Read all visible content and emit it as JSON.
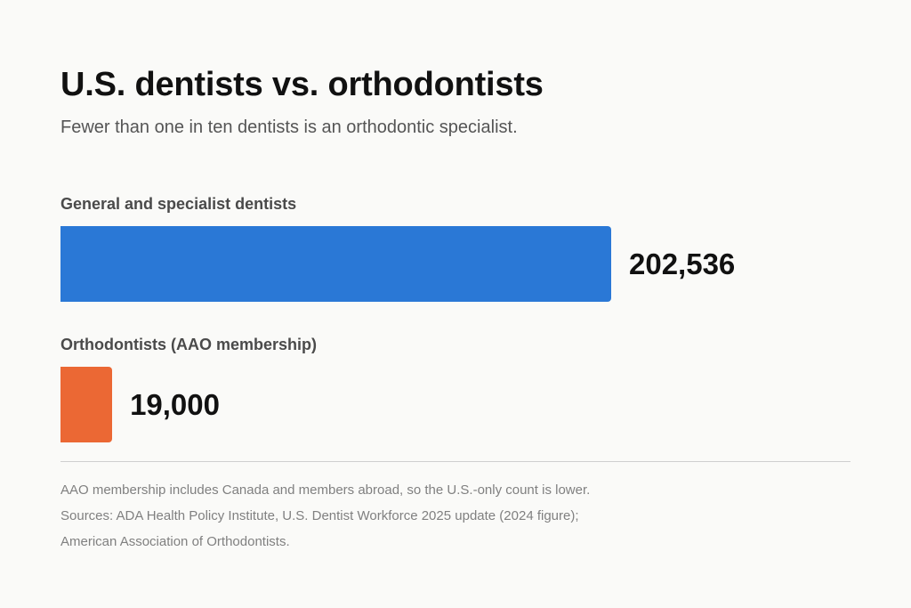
{
  "title": "U.S. dentists vs. orthodontists",
  "subtitle": "Fewer than one in ten dentists is an orthodontic specialist.",
  "chart_data": {
    "type": "bar",
    "orientation": "horizontal",
    "title": "U.S. dentists vs. orthodontists",
    "categories": [
      "General and specialist dentists",
      "Orthodontists (AAO membership)"
    ],
    "values": [
      202536,
      19000
    ],
    "value_labels": [
      "202,536",
      "19,000"
    ],
    "colors": [
      "#2a78d6",
      "#eb6834"
    ],
    "xlim": [
      0,
      202536
    ],
    "grid": false,
    "legend": "none"
  },
  "footnotes": {
    "note": "AAO membership includes Canada and members abroad, so the U.S.-only count is lower.",
    "sources_line1": "Sources: ADA Health Policy Institute, U.S. Dentist Workforce 2025 update (2024 figure);",
    "sources_line2": "American Association of Orthodontists."
  }
}
